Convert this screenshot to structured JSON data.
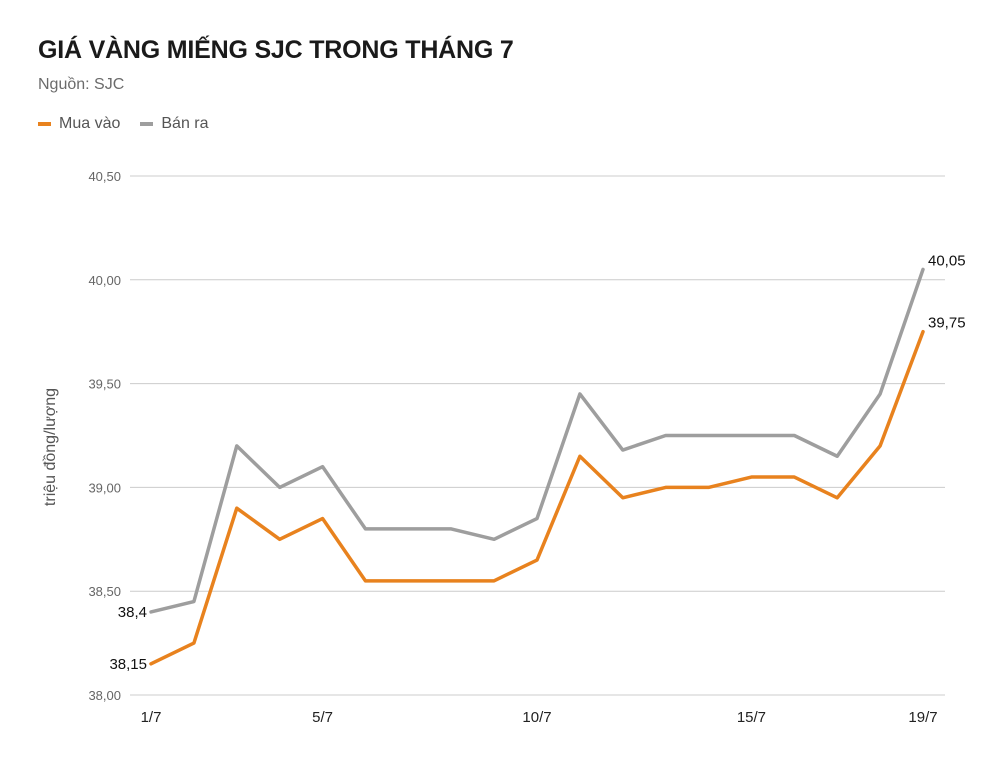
{
  "header": {
    "title": "GIÁ VÀNG MIẾNG SJC TRONG THÁNG 7",
    "source": "Nguồn: SJC"
  },
  "colors": {
    "buy": "#E8821E",
    "sell": "#9E9E9E",
    "grid": "#CCCCCC"
  },
  "chart_data": {
    "type": "line",
    "title": "GIÁ VÀNG MIẾNG SJC TRONG THÁNG 7",
    "subtitle": "Nguồn: SJC",
    "ylabel": "triệu đồng/lượng",
    "xlabel": "",
    "ylim": [
      38.0,
      40.5
    ],
    "yticks": [
      "38,00",
      "38,50",
      "39,00",
      "39,50",
      "40,00",
      "40,50"
    ],
    "ytick_values": [
      38.0,
      38.5,
      39.0,
      39.5,
      40.0,
      40.5
    ],
    "x": [
      1,
      2,
      3,
      4,
      5,
      6,
      7,
      8,
      9,
      10,
      11,
      12,
      13,
      14,
      15,
      16,
      17,
      18,
      19
    ],
    "xtick_labels": [
      {
        "x": 1,
        "label": "1/7"
      },
      {
        "x": 5,
        "label": "5/7"
      },
      {
        "x": 10,
        "label": "10/7"
      },
      {
        "x": 15,
        "label": "15/7"
      },
      {
        "x": 19,
        "label": "19/7"
      }
    ],
    "grid": true,
    "legend_position": "top-left",
    "series": [
      {
        "name": "Mua vào",
        "color": "#E8821E",
        "values": [
          38.15,
          38.25,
          38.9,
          38.75,
          38.85,
          38.55,
          38.55,
          38.55,
          38.55,
          38.65,
          39.15,
          38.95,
          39.0,
          39.0,
          39.05,
          39.05,
          38.95,
          39.2,
          39.75
        ],
        "labels": [
          {
            "x": 1,
            "text": "38,15"
          },
          {
            "x": 19,
            "text": "39,75"
          }
        ]
      },
      {
        "name": "Bán ra",
        "color": "#9E9E9E",
        "values": [
          38.4,
          38.45,
          39.2,
          39.0,
          39.1,
          38.8,
          38.8,
          38.8,
          38.75,
          38.85,
          39.45,
          39.18,
          39.25,
          39.25,
          39.25,
          39.25,
          39.15,
          39.45,
          40.05
        ],
        "labels": [
          {
            "x": 1,
            "text": "38,4"
          },
          {
            "x": 19,
            "text": "40,05"
          }
        ]
      }
    ]
  }
}
